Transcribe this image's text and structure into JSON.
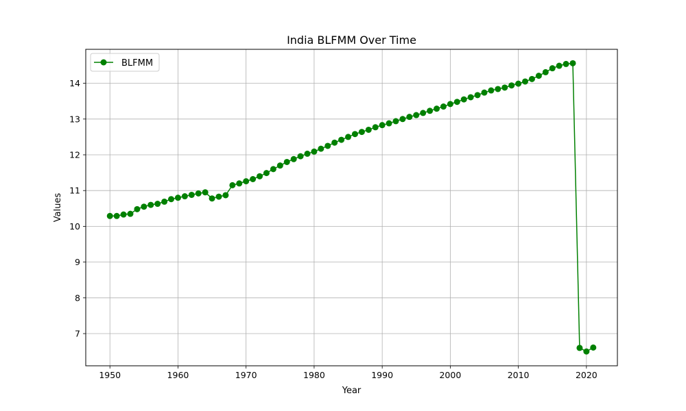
{
  "chart_data": {
    "type": "line",
    "title": "India BLFMM Over Time",
    "xlabel": "Year",
    "ylabel": "Values",
    "xlim": [
      1946.45,
      2024.55
    ],
    "ylim": [
      6.1,
      14.95
    ],
    "xticks": [
      1950,
      1960,
      1970,
      1980,
      1990,
      2000,
      2010,
      2020
    ],
    "yticks": [
      7,
      8,
      9,
      10,
      11,
      12,
      13,
      14
    ],
    "grid": true,
    "legend_position": "top-left",
    "series": [
      {
        "name": "BLFMM",
        "color": "#008000",
        "marker": "circle",
        "x": [
          1950,
          1951,
          1952,
          1953,
          1954,
          1955,
          1956,
          1957,
          1958,
          1959,
          1960,
          1961,
          1962,
          1963,
          1964,
          1965,
          1966,
          1967,
          1968,
          1969,
          1970,
          1971,
          1972,
          1973,
          1974,
          1975,
          1976,
          1977,
          1978,
          1979,
          1980,
          1981,
          1982,
          1983,
          1984,
          1985,
          1986,
          1987,
          1988,
          1989,
          1990,
          1991,
          1992,
          1993,
          1994,
          1995,
          1996,
          1997,
          1998,
          1999,
          2000,
          2001,
          2002,
          2003,
          2004,
          2005,
          2006,
          2007,
          2008,
          2009,
          2010,
          2011,
          2012,
          2013,
          2014,
          2015,
          2016,
          2017,
          2018,
          2019,
          2020,
          2021
        ],
        "y": [
          10.29,
          10.29,
          10.33,
          10.35,
          10.48,
          10.55,
          10.6,
          10.63,
          10.69,
          10.76,
          10.8,
          10.84,
          10.88,
          10.92,
          10.95,
          10.78,
          10.83,
          10.87,
          11.15,
          11.2,
          11.26,
          11.32,
          11.4,
          11.49,
          11.6,
          11.7,
          11.8,
          11.88,
          11.96,
          12.03,
          12.09,
          12.17,
          12.25,
          12.34,
          12.42,
          12.5,
          12.58,
          12.64,
          12.7,
          12.77,
          12.83,
          12.88,
          12.94,
          13.0,
          13.06,
          13.11,
          13.17,
          13.23,
          13.29,
          13.35,
          13.42,
          13.48,
          13.55,
          13.61,
          13.67,
          13.74,
          13.8,
          13.84,
          13.88,
          13.94,
          13.99,
          14.05,
          14.12,
          14.21,
          14.31,
          14.42,
          14.49,
          14.54,
          14.56,
          6.6,
          6.5,
          6.61
        ]
      }
    ]
  }
}
